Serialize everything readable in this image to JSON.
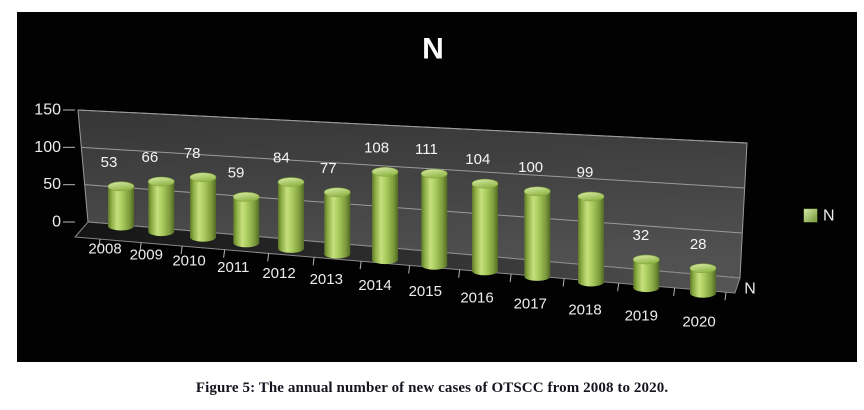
{
  "figure": {
    "caption": "Figure 5: The annual number of new cases of OTSCC from 2008 to 2020."
  },
  "chart_data": {
    "type": "bar",
    "style": "3d-cylinder",
    "title": "N",
    "categories": [
      "2008",
      "2009",
      "2010",
      "2011",
      "2012",
      "2013",
      "2014",
      "2015",
      "2016",
      "2017",
      "2018",
      "2019",
      "2020"
    ],
    "series": [
      {
        "name": "N",
        "values": [
          53,
          66,
          78,
          59,
          84,
          77,
          108,
          111,
          104,
          100,
          99,
          32,
          28
        ]
      }
    ],
    "value_labels_shown": true,
    "xlabel": "",
    "ylabel": "",
    "ylim": [
      0,
      150
    ],
    "yticks": [
      0,
      50,
      100,
      150
    ],
    "grid": true,
    "legend": {
      "position": "right",
      "label": "N"
    },
    "series_axis_label": "N",
    "colors": {
      "background": "#020202",
      "bar": "#9dc34d",
      "bar_highlight": "#c6e07e",
      "bar_shadow": "#5d772a",
      "wall": "#424242",
      "floor": "#2c2c2c",
      "gridline": "#9b9b9b",
      "tick": "#b5b5b5",
      "axis_text": "#ececec",
      "value_label_text": "#f5f5f5",
      "title_text": "#fcfcfc",
      "caption_text": "#15151f"
    }
  }
}
